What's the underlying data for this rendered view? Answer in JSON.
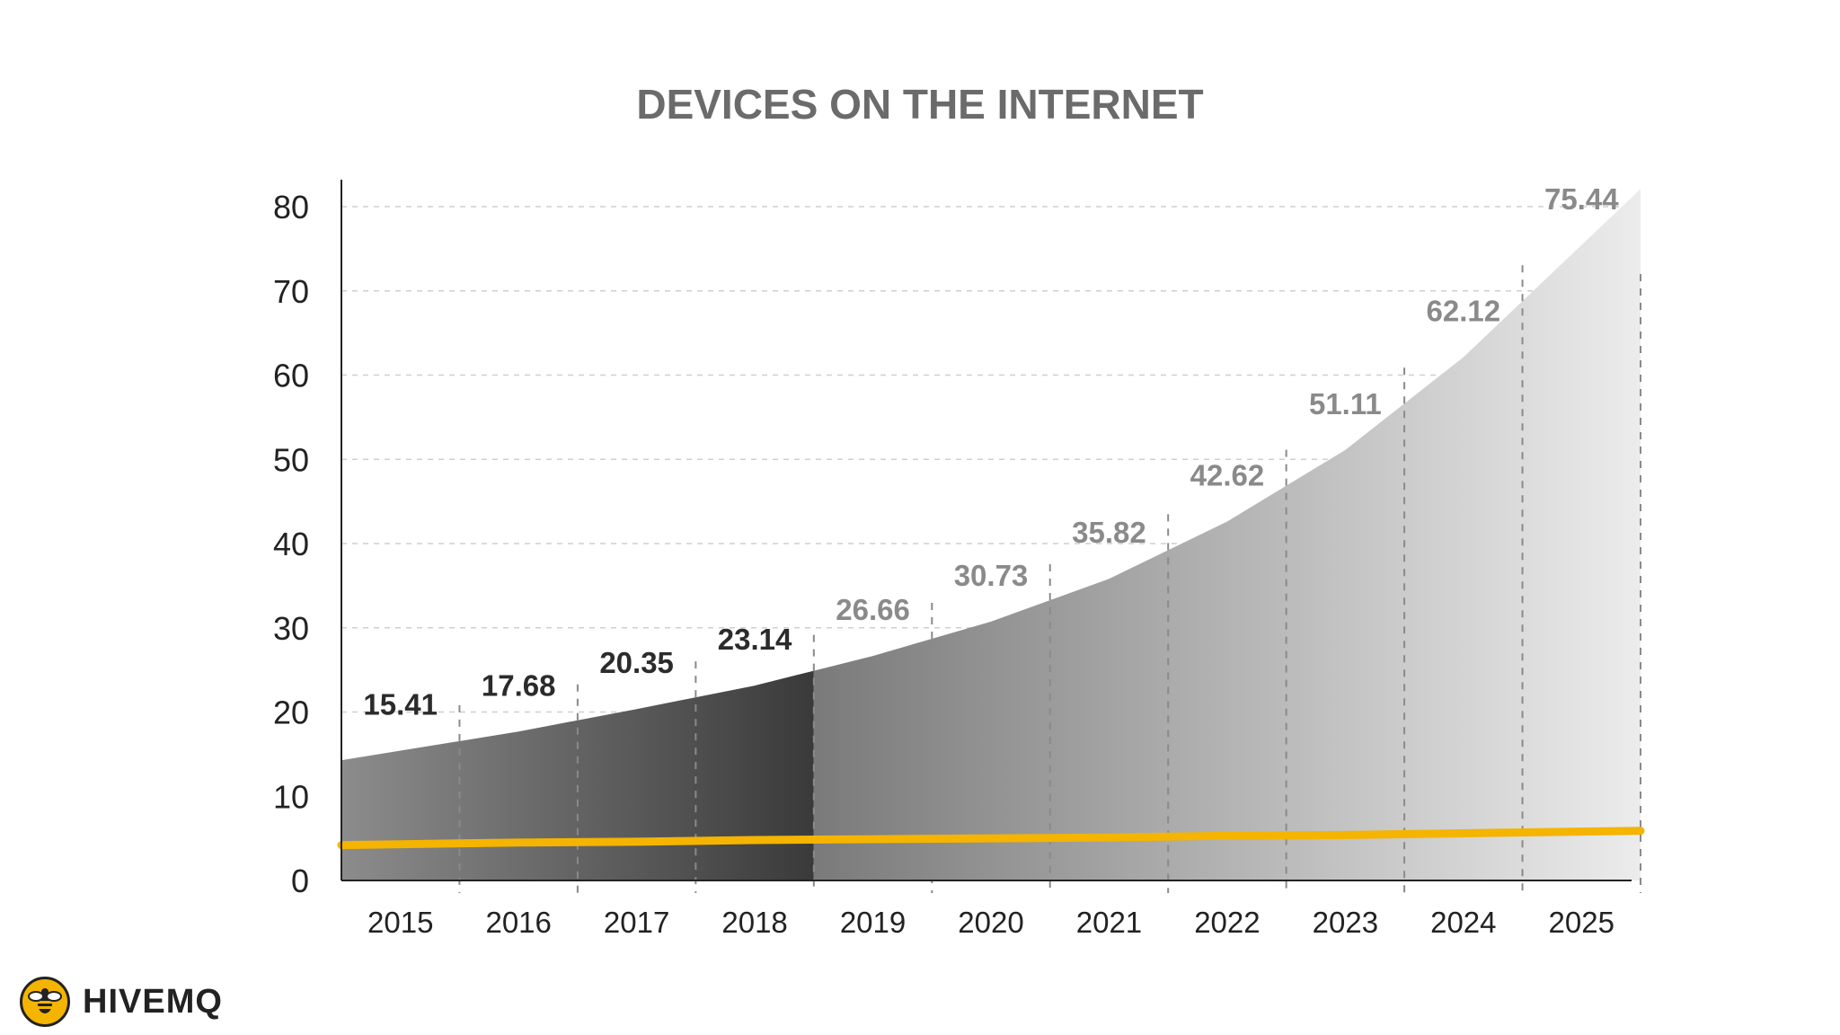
{
  "chart_data": {
    "type": "area",
    "title": "DEVICES ON THE INTERNET",
    "xlabel": "",
    "ylabel": "",
    "categories": [
      "2015",
      "2016",
      "2017",
      "2018",
      "2019",
      "2020",
      "2021",
      "2022",
      "2023",
      "2024",
      "2025"
    ],
    "series": [
      {
        "values": [
          15.41,
          17.68,
          20.35,
          23.14,
          26.66,
          30.73,
          35.82,
          42.62,
          51.11,
          62.12,
          75.44
        ]
      },
      {
        "values": [
          4.3,
          4.5,
          4.6,
          4.8,
          4.9,
          5.0,
          5.1,
          5.3,
          5.4,
          5.6,
          5.8
        ]
      }
    ],
    "data_labels": [
      "15.41",
      "17.68",
      "20.35",
      "23.14",
      "26.66",
      "30.73",
      "35.82",
      "42.62",
      "51.11",
      "62.12",
      "75.44"
    ],
    "yticks": [
      "0",
      "10",
      "20",
      "30",
      "40",
      "50",
      "60",
      "70",
      "80"
    ],
    "ylim": [
      0,
      80
    ],
    "grid": true,
    "legend": "none",
    "colors": {
      "historical_dark": "#3a3a3a",
      "historical_light": "#8c8c8c",
      "forecast_dark": "#7a7a7a",
      "forecast_light": "#ececec",
      "baseline_line": "#f4b400",
      "title": "#6b6b6b",
      "historical_label": "#2b2b2b",
      "forecast_label": "#8a8a8a"
    }
  },
  "brand": {
    "logo_text": "HIVEMQ",
    "icon": "bee-icon"
  }
}
